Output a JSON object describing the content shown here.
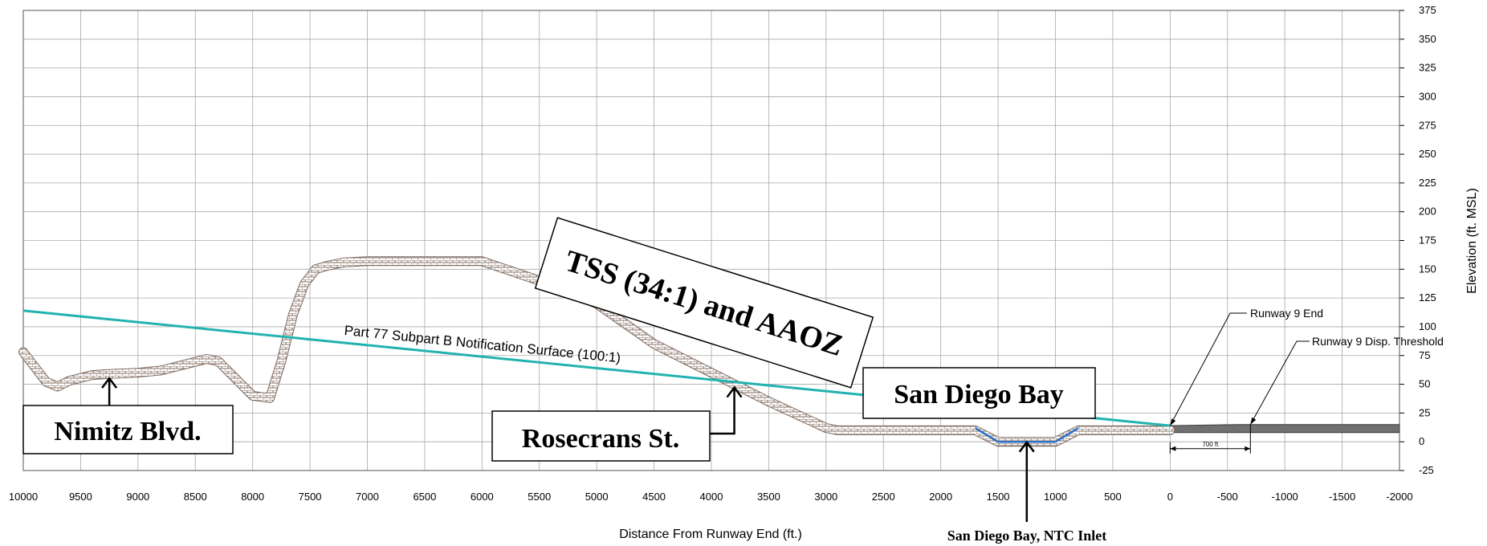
{
  "chart_data": {
    "type": "line",
    "xlabel": "Distance From Runway End (ft.)",
    "ylabel": "Elevation (ft. MSL)",
    "xlim": [
      10000,
      -2000
    ],
    "ylim": [
      -25,
      375
    ],
    "x_ticks": [
      "10000",
      "9500",
      "9000",
      "8500",
      "8000",
      "7500",
      "7000",
      "6500",
      "6000",
      "5500",
      "5000",
      "4500",
      "4000",
      "3500",
      "3000",
      "2500",
      "2000",
      "1500",
      "1000",
      "500",
      "0",
      "-500",
      "-1000",
      "-1500",
      "-2000"
    ],
    "y_ticks": [
      "375",
      "350",
      "325",
      "300",
      "275",
      "250",
      "225",
      "200",
      "175",
      "150",
      "125",
      "100",
      "75",
      "50",
      "25",
      "0",
      "-25"
    ],
    "grid": true,
    "series": [
      {
        "name": "Part 77 Subpart B Notification Surface (100:1)",
        "color": "#22b3b0",
        "x": [
          10000,
          0
        ],
        "y": [
          114,
          14
        ]
      },
      {
        "name": "",
        "color": "#c8b8b0",
        "x": [
          10000,
          9900,
          9800,
          9700,
          9600,
          9400,
          9250,
          9000,
          8800,
          8600,
          8400,
          8300,
          8150,
          8000,
          7850,
          7750,
          7650,
          7550,
          7450,
          7350,
          7200,
          7000,
          6500,
          6000,
          5500,
          5000,
          4800,
          4500,
          4000,
          3500,
          3000,
          2900,
          2500,
          2000,
          1700,
          1500,
          1400,
          1000,
          800,
          700,
          500,
          0
        ],
        "y": [
          78,
          65,
          52,
          48,
          53,
          58,
          59,
          60,
          62,
          67,
          72,
          70,
          55,
          40,
          38,
          70,
          110,
          137,
          150,
          153,
          156,
          157,
          157,
          157,
          140,
          120,
          106,
          85,
          60,
          35,
          12,
          10,
          10,
          10,
          10,
          0,
          0,
          0,
          10,
          10,
          10,
          10
        ]
      },
      {
        "name": "",
        "color": "#2f6fc4",
        "x": [
          1700,
          1500,
          1000,
          800
        ],
        "y": [
          12,
          0,
          0,
          12
        ]
      }
    ],
    "runway": {
      "color": "#707070",
      "start_x": 0,
      "end_x": -2000,
      "bottom_y": 8,
      "top_y_start": 14,
      "top_y_end": 15
    },
    "dimension": {
      "label": "700 ft",
      "from_x": 0,
      "to_x": -700,
      "y": -6
    },
    "annotations": [
      {
        "name": "runway-9-end",
        "text": "Runway 9 End",
        "target_x": 0,
        "target_y": 14
      },
      {
        "name": "runway-9-disp-threshold",
        "text": "Runway 9 Disp. Threshold",
        "target_x": -700,
        "target_y": 15
      }
    ],
    "labels": {
      "nimitz": "Nimitz Blvd.",
      "rosecrans": "Rosecrans St.",
      "san_diego_bay": "San Diego Bay",
      "tss": "TSS (34:1) and AAOZ",
      "ntc_inlet": "San Diego Bay, NTC Inlet"
    },
    "label_targets": {
      "nimitz": {
        "x": 9250,
        "y": 58
      },
      "rosecrans": {
        "x": 3800,
        "y": 50
      },
      "ntc_inlet": {
        "x": 1250,
        "y": 1
      }
    }
  }
}
